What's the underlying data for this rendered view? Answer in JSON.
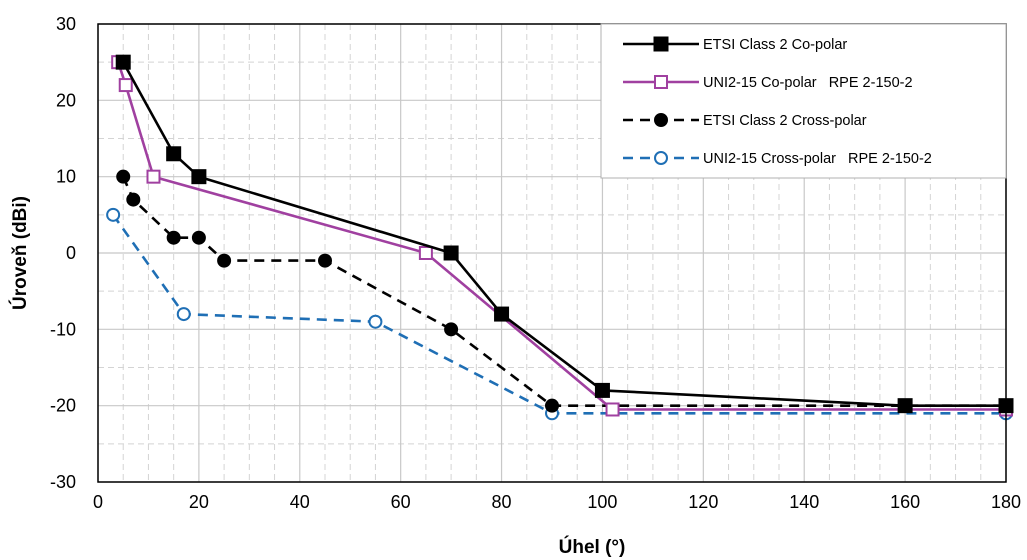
{
  "chart_data": {
    "type": "line",
    "title": "",
    "xlabel": "Úhel (°)",
    "ylabel": "Úroveň (dBi)",
    "xlim": [
      0,
      180
    ],
    "ylim": [
      -30,
      30
    ],
    "xticks": [
      "0",
      "20",
      "40",
      "60",
      "80",
      "100",
      "120",
      "140",
      "160",
      "180"
    ],
    "yticks": [
      "30",
      "20",
      "10",
      "0",
      "-10",
      "-20",
      "-30"
    ],
    "grid": "major solid, minor dashed",
    "legend_position": "top-right",
    "series": [
      {
        "name": "ETSI Class 2 Co-polar",
        "color": "#000000",
        "line": "solid",
        "marker": "square-filled",
        "points": [
          [
            5,
            25
          ],
          [
            15,
            13
          ],
          [
            20,
            10
          ],
          [
            70,
            0
          ],
          [
            80,
            -8
          ],
          [
            100,
            -18
          ],
          [
            160,
            -20
          ],
          [
            180,
            -20
          ]
        ]
      },
      {
        "name": "UNI2-15 Co-polar   RPE 2-150-2",
        "color": "#a040a0",
        "line": "solid",
        "marker": "square-open",
        "points": [
          [
            4,
            25
          ],
          [
            5.5,
            22
          ],
          [
            11,
            10
          ],
          [
            65,
            0
          ],
          [
            102,
            -20.5
          ],
          [
            180,
            -20.5
          ]
        ]
      },
      {
        "name": "ETSI Class 2 Cross-polar",
        "color": "#000000",
        "line": "dashed",
        "marker": "circle-filled",
        "points": [
          [
            5,
            10
          ],
          [
            7,
            7
          ],
          [
            15,
            2
          ],
          [
            20,
            2
          ],
          [
            25,
            -1
          ],
          [
            45,
            -1
          ],
          [
            70,
            -10
          ],
          [
            90,
            -20
          ],
          [
            180,
            -20
          ]
        ]
      },
      {
        "name": "UNI2-15 Cross-polar   RPE 2-150-2",
        "color": "#1f6fb5",
        "line": "dashed",
        "marker": "circle-open",
        "points": [
          [
            3,
            5
          ],
          [
            17,
            -8
          ],
          [
            55,
            -9
          ],
          [
            90,
            -21
          ],
          [
            180,
            -21
          ]
        ]
      }
    ]
  }
}
